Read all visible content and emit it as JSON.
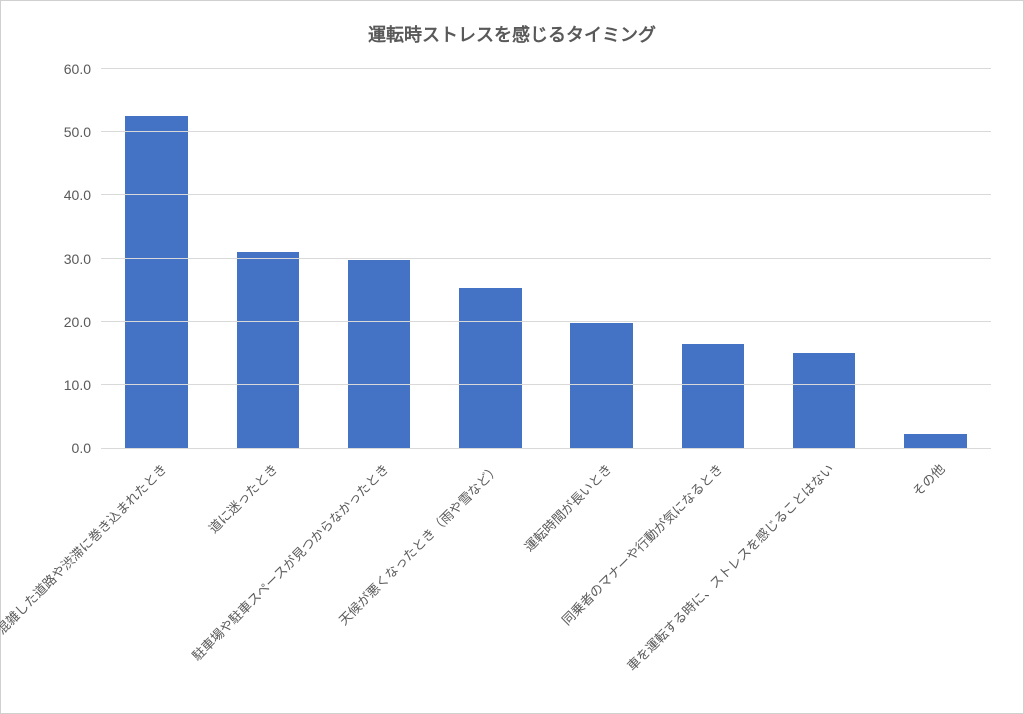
{
  "chart": {
    "type": "bar",
    "title": "運転時ストレスを感じるタイミング",
    "title_fontsize": 18,
    "title_color": "#595959",
    "background_color": "#ffffff",
    "grid_color": "#d9d9d9",
    "label_color": "#595959",
    "label_fontsize": 14,
    "xlabel_fontsize": 13,
    "xlabel_rotation": -45,
    "ylim": [
      0.0,
      60.0
    ],
    "ytick_step": 10.0,
    "yticks": [
      "0.0",
      "10.0",
      "20.0",
      "30.0",
      "40.0",
      "50.0",
      "60.0"
    ],
    "bar_color": "#4472c4",
    "bar_width": 0.56,
    "categories": [
      "混雑した道路や渋滞に巻き込まれたとき",
      "道に迷ったとき",
      "駐車場や駐車スペースが見つからなかったとき",
      "天候が悪くなったとき（雨や雪など）",
      "運転時間が長いとき",
      "同乗者のマナーや行動が気になるとき",
      "車を運転する時に、ストレスを感じることはない",
      "その他"
    ],
    "values": [
      52.5,
      31.0,
      29.8,
      25.3,
      19.8,
      16.5,
      15.0,
      2.2
    ]
  }
}
